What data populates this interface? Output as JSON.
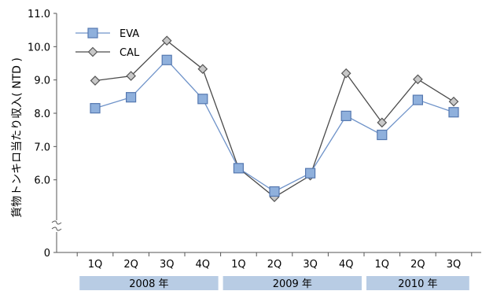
{
  "chart_data": {
    "type": "line",
    "title": "",
    "ylabel": "貨物トンキロ当たり収入( NTD )",
    "xlabel": "",
    "ylim": [
      5.0,
      11.0
    ],
    "y_ticks": [
      "11.0",
      "10.0",
      "9.0",
      "8.0",
      "7.0",
      "6.0"
    ],
    "y_axis_break": true,
    "y_zero_label": "0",
    "categories": [
      "1Q",
      "2Q",
      "3Q",
      "4Q",
      "1Q",
      "2Q",
      "3Q",
      "4Q",
      "1Q",
      "2Q",
      "3Q"
    ],
    "years": [
      {
        "label": "2008 年",
        "quarters": 4
      },
      {
        "label": "2009 年",
        "quarters": 4
      },
      {
        "label": "2010 年",
        "quarters": 3
      }
    ],
    "series": [
      {
        "name": "EVA",
        "marker": "square",
        "line_color": "#6f93c9",
        "marker_fill": "#8fb0dc",
        "marker_stroke": "#5578b0",
        "values": [
          8.15,
          8.48,
          9.6,
          8.43,
          6.35,
          5.65,
          6.2,
          7.92,
          7.35,
          8.4,
          8.03
        ]
      },
      {
        "name": "CAL",
        "marker": "diamond",
        "line_color": "#4a4a4a",
        "marker_fill": "#c8c8c8",
        "marker_stroke": "#555555",
        "values": [
          8.98,
          9.12,
          10.18,
          9.33,
          6.35,
          5.48,
          6.13,
          9.2,
          7.72,
          9.02,
          8.35
        ]
      }
    ],
    "legend_position": "top-left",
    "grid": false,
    "year_band_color": "#b8cce4"
  }
}
